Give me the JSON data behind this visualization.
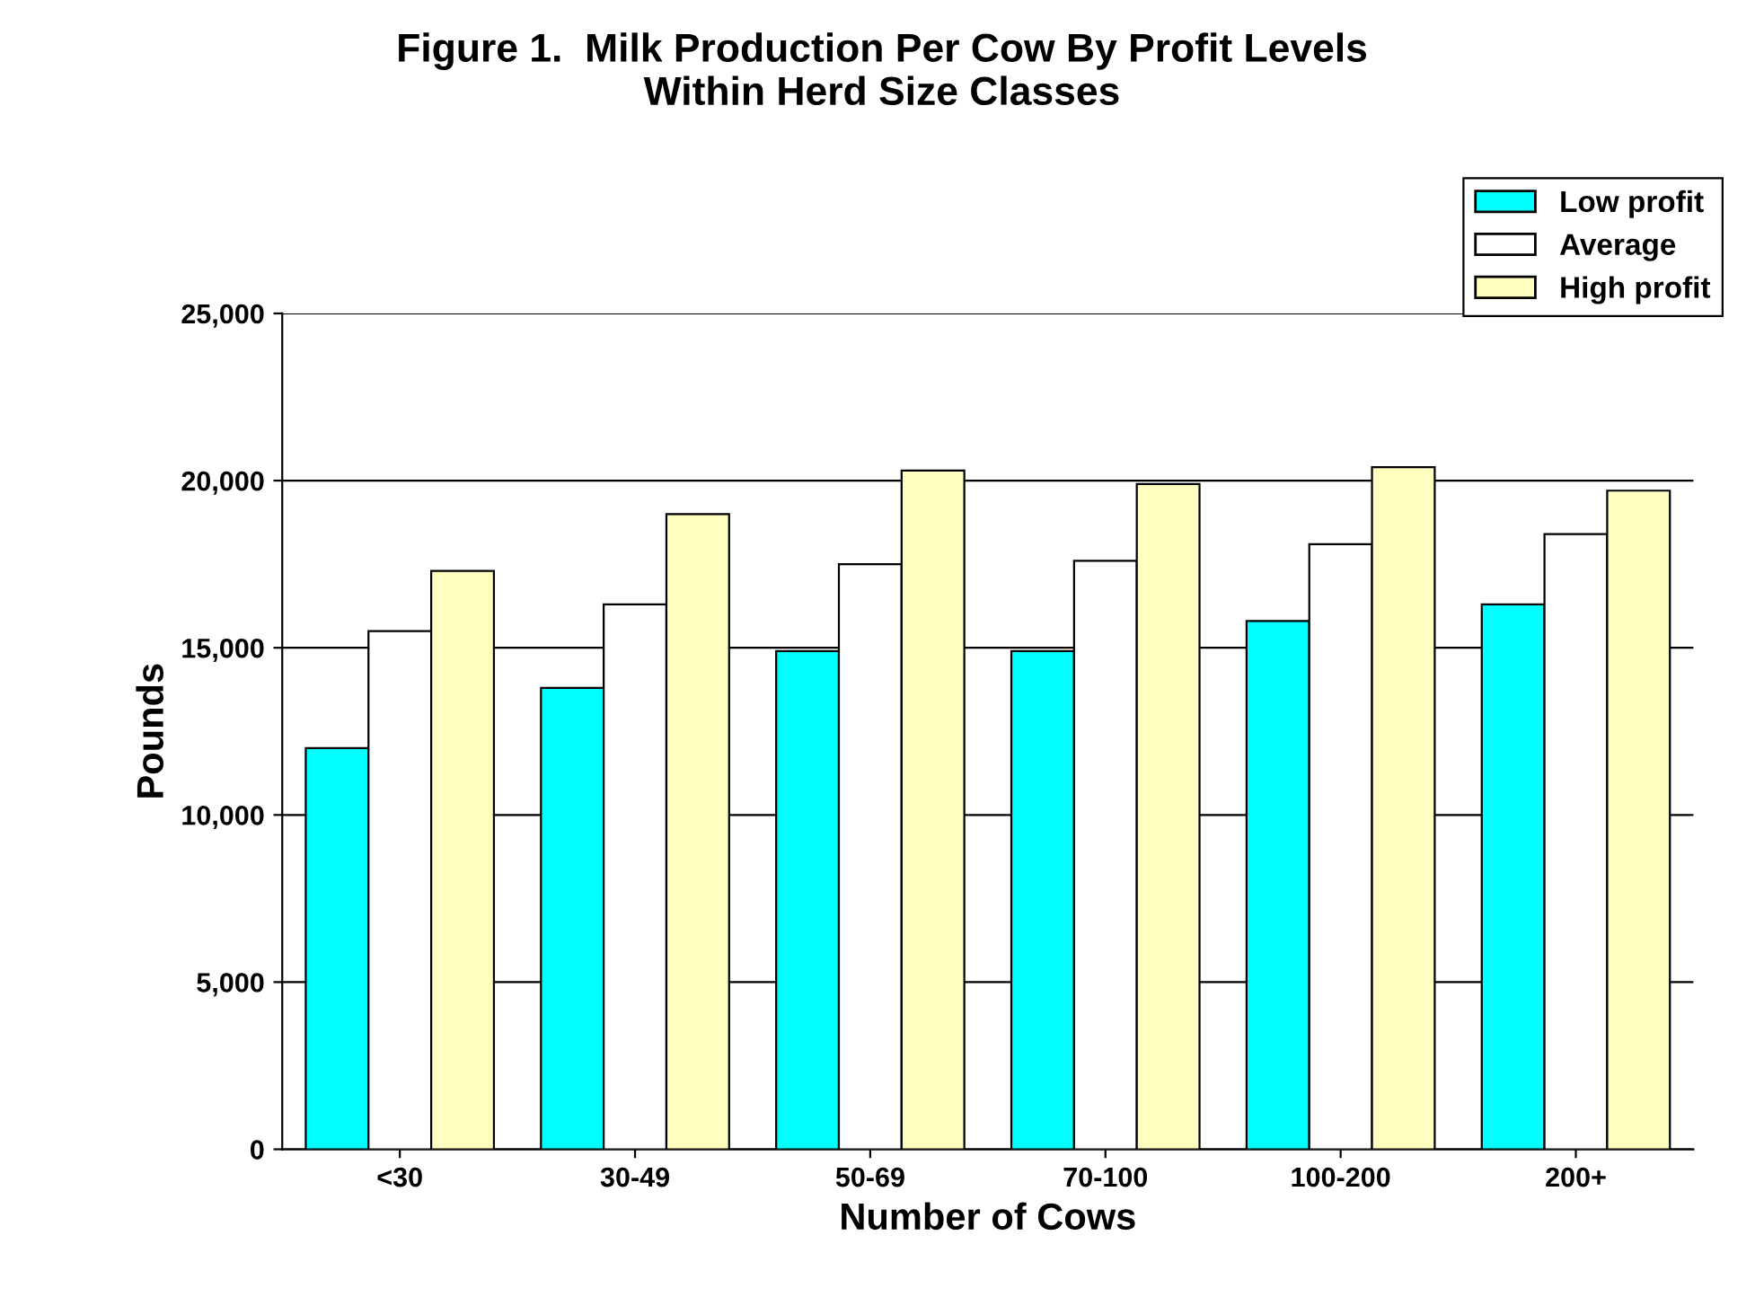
{
  "chart_data": {
    "type": "bar",
    "title": "Figure 1.  Milk Production Per Cow By Profit Levels\nWithin Herd Size Classes",
    "xlabel": "Number of Cows",
    "ylabel": "Pounds",
    "categories": [
      "<30",
      "30-49",
      "50-69",
      "70-100",
      "100-200",
      "200+"
    ],
    "series": [
      {
        "name": "Low profit",
        "color": "#00ffff",
        "values": [
          12000,
          13800,
          14900,
          14900,
          15800,
          16300
        ]
      },
      {
        "name": "Average",
        "color": "#ffffff",
        "values": [
          15500,
          16300,
          17500,
          17600,
          18100,
          18400
        ]
      },
      {
        "name": "High profit",
        "color": "#ffffc0",
        "values": [
          17300,
          19000,
          20300,
          19900,
          20400,
          19700
        ]
      }
    ],
    "ylim": [
      0,
      25000
    ],
    "yticks": [
      {
        "value": 0,
        "label": "0"
      },
      {
        "value": 5000,
        "label": "5,000"
      },
      {
        "value": 10000,
        "label": "10,000"
      },
      {
        "value": 15000,
        "label": "15,000"
      },
      {
        "value": 20000,
        "label": "20,000"
      },
      {
        "value": 25000,
        "label": "25,000"
      }
    ],
    "grid": "y",
    "legend": "top right"
  }
}
